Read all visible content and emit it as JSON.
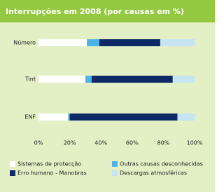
{
  "chart_data": {
    "type": "bar",
    "stacked": true,
    "orientation": "horizontal",
    "title": "Interrupções em 2008 (por causas em %)",
    "categories": [
      "Número",
      "Tint",
      "ENF"
    ],
    "series": [
      {
        "name": "Sistemas de protecção",
        "color": "#ffffff",
        "values": [
          31,
          30,
          19
        ]
      },
      {
        "name": "Outras causas desconhecidas",
        "color": "#4db3e6",
        "values": [
          8,
          4,
          1
        ]
      },
      {
        "name": "Erro humano - Manobras",
        "color": "#0d2a66",
        "values": [
          39,
          52,
          69
        ]
      },
      {
        "name": "Descargas atmosféricas",
        "color": "#c6e4f2",
        "values": [
          22,
          14,
          11
        ]
      }
    ],
    "xlim": [
      0,
      100
    ],
    "xticks": [
      {
        "value": 0,
        "label": "0%"
      },
      {
        "value": 20,
        "label": "20%"
      },
      {
        "value": 40,
        "label": "40%"
      },
      {
        "value": 60,
        "label": "60%"
      },
      {
        "value": 80,
        "label": "80%"
      },
      {
        "value": 100,
        "label": "100%"
      }
    ]
  }
}
